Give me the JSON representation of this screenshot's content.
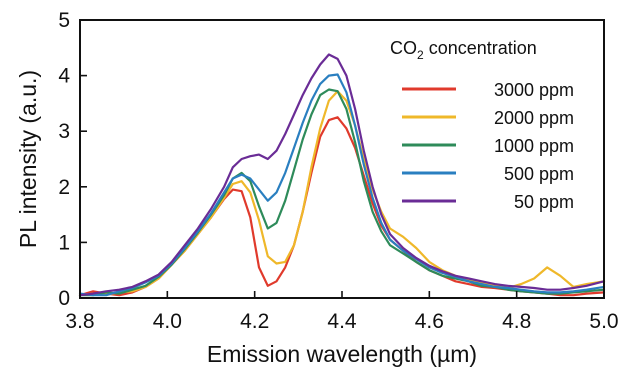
{
  "chart_data": {
    "type": "line",
    "title": "",
    "xlabel": "Emission wavelength (µm)",
    "ylabel": "PL intensity (a.u.)",
    "xlim": [
      3.8,
      5.0
    ],
    "ylim": [
      0,
      5
    ],
    "xticks": [
      "3.8",
      "4.0",
      "4.2",
      "4.4",
      "4.6",
      "4.8",
      "5.0"
    ],
    "yticks": [
      "0",
      "1",
      "2",
      "3",
      "4",
      "5"
    ],
    "grid": false,
    "legend": {
      "title_main": "CO",
      "title_sub": "2",
      "title_rest": " concentration",
      "placement": "top-right"
    },
    "series": [
      {
        "name": "3000 ppm",
        "color": "#e03a2c",
        "x": [
          3.8,
          3.83,
          3.86,
          3.89,
          3.92,
          3.95,
          3.98,
          4.01,
          4.04,
          4.07,
          4.1,
          4.13,
          4.15,
          4.17,
          4.19,
          4.21,
          4.23,
          4.25,
          4.27,
          4.29,
          4.31,
          4.33,
          4.35,
          4.37,
          4.39,
          4.41,
          4.43,
          4.45,
          4.47,
          4.49,
          4.51,
          4.54,
          4.57,
          4.6,
          4.63,
          4.66,
          4.69,
          4.72,
          4.75,
          4.78,
          4.81,
          4.84,
          4.87,
          4.9,
          4.93,
          4.96,
          5.0
        ],
        "y": [
          0.05,
          0.12,
          0.08,
          0.05,
          0.1,
          0.2,
          0.35,
          0.6,
          0.85,
          1.15,
          1.45,
          1.78,
          1.95,
          1.92,
          1.45,
          0.55,
          0.22,
          0.3,
          0.55,
          0.95,
          1.55,
          2.25,
          2.9,
          3.2,
          3.25,
          3.05,
          2.7,
          2.2,
          1.7,
          1.3,
          1.05,
          0.85,
          0.65,
          0.5,
          0.4,
          0.3,
          0.25,
          0.2,
          0.18,
          0.15,
          0.12,
          0.1,
          0.08,
          0.05,
          0.05,
          0.08,
          0.1
        ]
      },
      {
        "name": "2000 ppm",
        "color": "#efb82a",
        "x": [
          3.8,
          3.83,
          3.86,
          3.89,
          3.92,
          3.95,
          3.98,
          4.01,
          4.04,
          4.07,
          4.1,
          4.13,
          4.15,
          4.17,
          4.19,
          4.21,
          4.23,
          4.25,
          4.27,
          4.29,
          4.31,
          4.33,
          4.35,
          4.37,
          4.39,
          4.41,
          4.43,
          4.45,
          4.47,
          4.49,
          4.51,
          4.54,
          4.57,
          4.6,
          4.63,
          4.66,
          4.69,
          4.72,
          4.75,
          4.78,
          4.81,
          4.84,
          4.87,
          4.9,
          4.93,
          4.96,
          5.0
        ],
        "y": [
          0.05,
          0.08,
          0.06,
          0.1,
          0.12,
          0.2,
          0.35,
          0.6,
          0.85,
          1.15,
          1.45,
          1.8,
          2.05,
          2.1,
          1.9,
          1.4,
          0.75,
          0.62,
          0.65,
          0.95,
          1.55,
          2.35,
          3.05,
          3.55,
          3.72,
          3.55,
          3.1,
          2.5,
          1.95,
          1.55,
          1.25,
          1.1,
          0.9,
          0.65,
          0.5,
          0.4,
          0.32,
          0.28,
          0.22,
          0.18,
          0.25,
          0.35,
          0.55,
          0.4,
          0.2,
          0.25,
          0.3
        ]
      },
      {
        "name": "1000 ppm",
        "color": "#2e8b5a",
        "x": [
          3.8,
          3.83,
          3.86,
          3.89,
          3.92,
          3.95,
          3.98,
          4.01,
          4.04,
          4.07,
          4.1,
          4.13,
          4.15,
          4.17,
          4.19,
          4.21,
          4.23,
          4.25,
          4.27,
          4.29,
          4.31,
          4.33,
          4.35,
          4.37,
          4.39,
          4.41,
          4.43,
          4.45,
          4.47,
          4.49,
          4.51,
          4.54,
          4.57,
          4.6,
          4.63,
          4.66,
          4.69,
          4.72,
          4.75,
          4.78,
          4.81,
          4.84,
          4.87,
          4.9,
          4.93,
          4.96,
          5.0
        ],
        "y": [
          0.05,
          0.05,
          0.1,
          0.08,
          0.15,
          0.22,
          0.38,
          0.6,
          0.88,
          1.18,
          1.5,
          1.85,
          2.15,
          2.25,
          2.1,
          1.65,
          1.25,
          1.35,
          1.75,
          2.3,
          2.85,
          3.3,
          3.65,
          3.75,
          3.72,
          3.4,
          2.8,
          2.1,
          1.55,
          1.2,
          0.95,
          0.8,
          0.65,
          0.5,
          0.4,
          0.35,
          0.3,
          0.22,
          0.2,
          0.15,
          0.12,
          0.1,
          0.08,
          0.08,
          0.1,
          0.12,
          0.15
        ]
      },
      {
        "name": "500 ppm",
        "color": "#2a7fc0",
        "x": [
          3.8,
          3.83,
          3.86,
          3.89,
          3.92,
          3.95,
          3.98,
          4.01,
          4.04,
          4.07,
          4.1,
          4.13,
          4.15,
          4.17,
          4.19,
          4.21,
          4.23,
          4.25,
          4.27,
          4.29,
          4.31,
          4.33,
          4.35,
          4.37,
          4.39,
          4.41,
          4.43,
          4.45,
          4.47,
          4.49,
          4.51,
          4.54,
          4.57,
          4.6,
          4.63,
          4.66,
          4.69,
          4.72,
          4.75,
          4.78,
          4.81,
          4.84,
          4.87,
          4.9,
          4.93,
          4.96,
          5.0
        ],
        "y": [
          0.08,
          0.05,
          0.05,
          0.12,
          0.18,
          0.28,
          0.4,
          0.62,
          0.9,
          1.2,
          1.52,
          1.9,
          2.15,
          2.22,
          2.15,
          1.95,
          1.75,
          1.9,
          2.25,
          2.7,
          3.15,
          3.55,
          3.85,
          4.0,
          4.02,
          3.7,
          3.1,
          2.4,
          1.8,
          1.35,
          1.05,
          0.85,
          0.7,
          0.55,
          0.45,
          0.38,
          0.3,
          0.25,
          0.2,
          0.18,
          0.15,
          0.12,
          0.1,
          0.1,
          0.12,
          0.15,
          0.2
        ]
      },
      {
        "name": "50 ppm",
        "color": "#6a2c96",
        "x": [
          3.8,
          3.83,
          3.86,
          3.89,
          3.92,
          3.95,
          3.98,
          4.01,
          4.04,
          4.07,
          4.1,
          4.13,
          4.15,
          4.17,
          4.19,
          4.21,
          4.23,
          4.25,
          4.27,
          4.29,
          4.31,
          4.33,
          4.35,
          4.37,
          4.39,
          4.41,
          4.43,
          4.45,
          4.47,
          4.49,
          4.51,
          4.54,
          4.57,
          4.6,
          4.63,
          4.66,
          4.69,
          4.72,
          4.75,
          4.78,
          4.81,
          4.84,
          4.87,
          4.9,
          4.93,
          4.96,
          5.0
        ],
        "y": [
          0.05,
          0.08,
          0.12,
          0.15,
          0.2,
          0.3,
          0.42,
          0.65,
          0.95,
          1.25,
          1.6,
          2.0,
          2.35,
          2.5,
          2.55,
          2.58,
          2.5,
          2.65,
          2.95,
          3.3,
          3.65,
          3.95,
          4.2,
          4.38,
          4.3,
          4.0,
          3.4,
          2.65,
          2.0,
          1.5,
          1.15,
          0.9,
          0.72,
          0.58,
          0.48,
          0.4,
          0.35,
          0.3,
          0.25,
          0.22,
          0.2,
          0.18,
          0.15,
          0.15,
          0.18,
          0.22,
          0.3
        ]
      }
    ]
  }
}
